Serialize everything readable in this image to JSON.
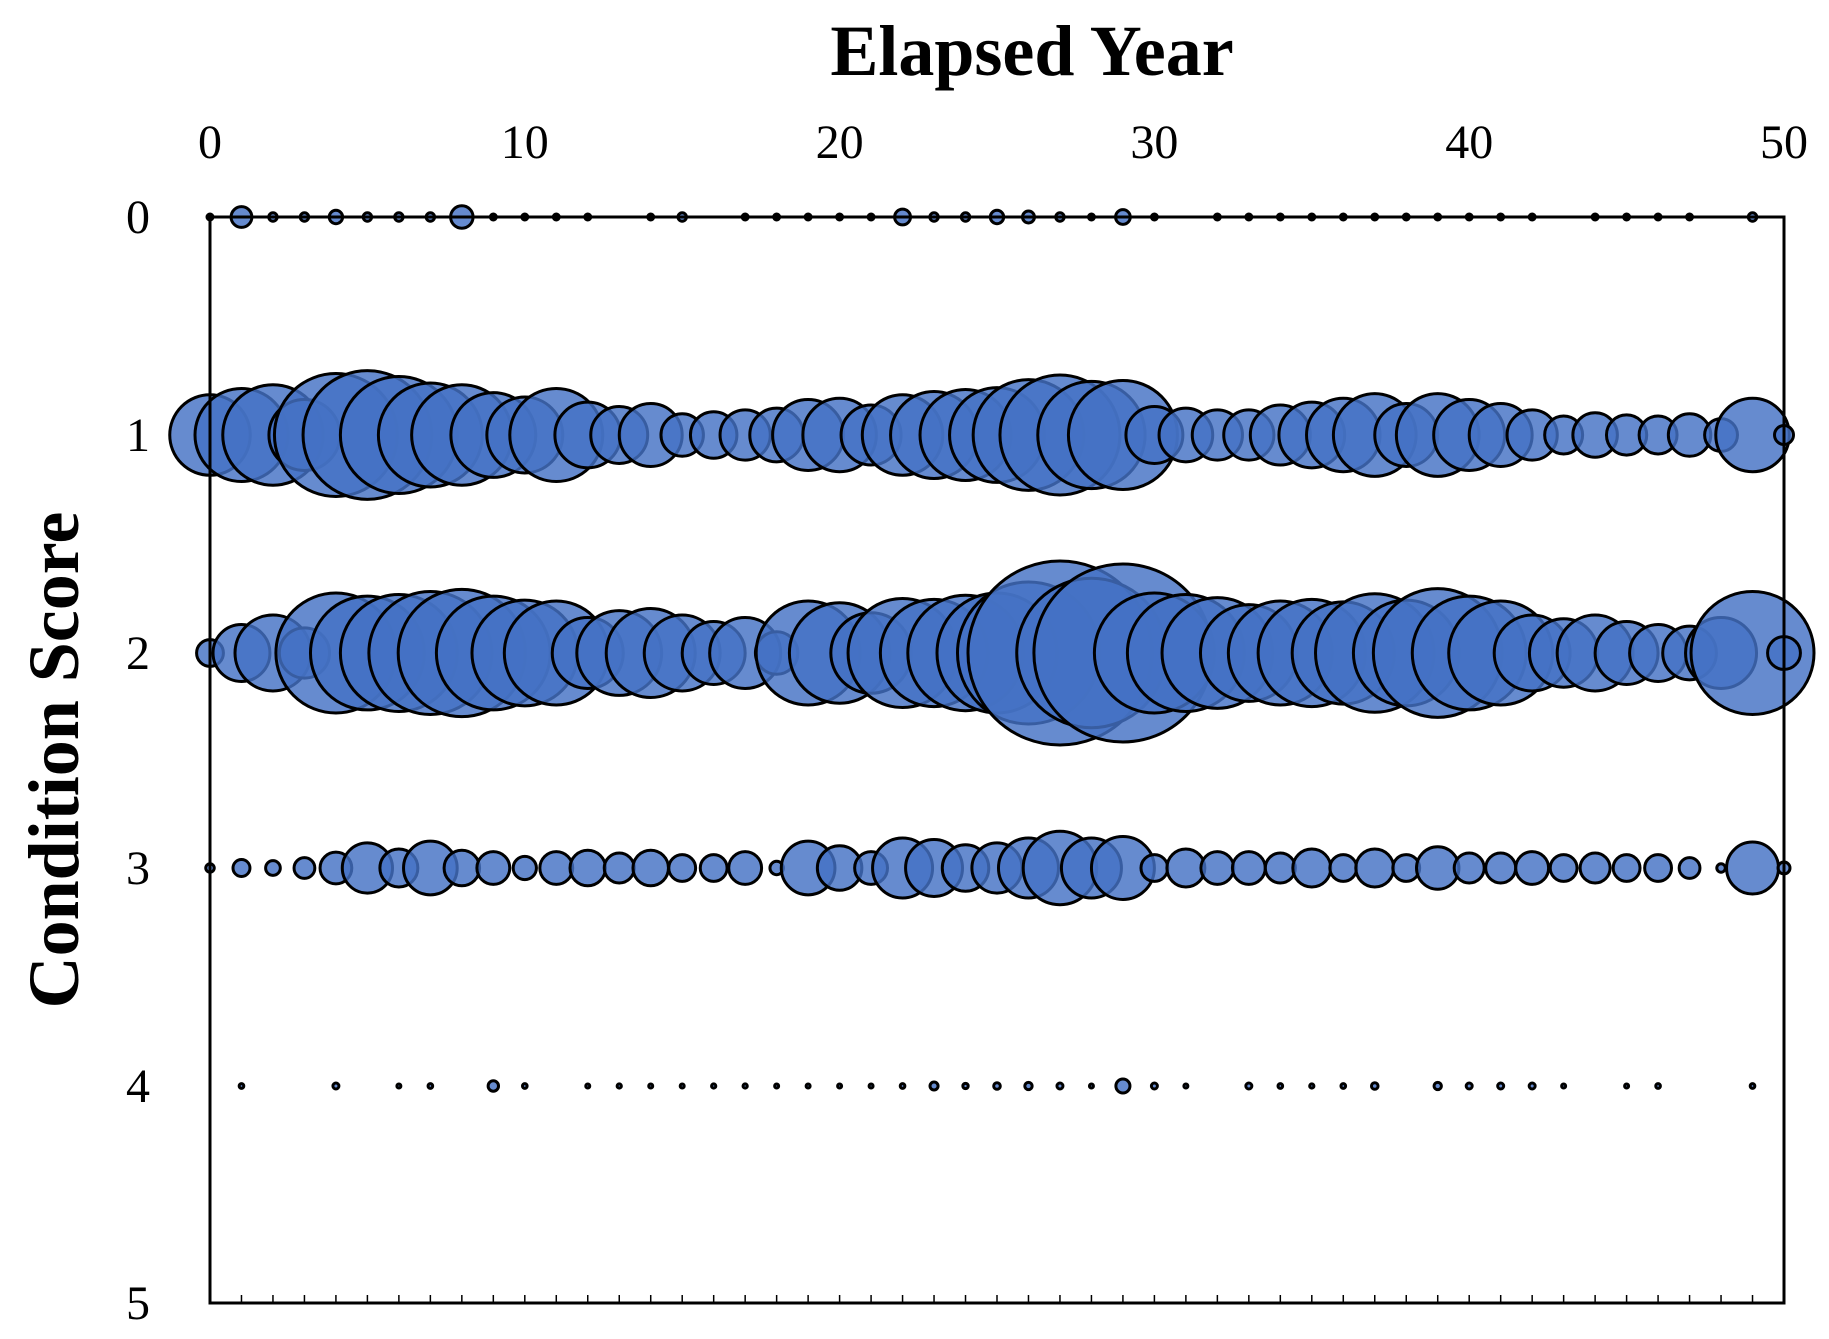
{
  "chart_data": {
    "type": "scatter",
    "title": "",
    "xlabel": "Elapsed Year",
    "ylabel": "Condition Score",
    "xlim": [
      0,
      50
    ],
    "ylim": [
      0,
      5
    ],
    "y_reversed": true,
    "x_axis_position": "top",
    "x_ticks": [
      0,
      10,
      20,
      30,
      40,
      50
    ],
    "y_ticks": [
      0,
      1,
      2,
      3,
      4,
      5
    ],
    "grid": false,
    "legend": "none",
    "marker_color": "#4472C4",
    "marker_edge_color": "#000000",
    "size_encoding": "bubble radius proportional to sqrt(count)",
    "bubbles": {
      "score_0": [
        [
          0,
          1
        ],
        [
          1,
          12
        ],
        [
          2,
          2
        ],
        [
          3,
          2
        ],
        [
          4,
          5
        ],
        [
          5,
          2
        ],
        [
          6,
          2
        ],
        [
          7,
          2
        ],
        [
          8,
          14
        ],
        [
          9,
          1
        ],
        [
          10,
          1
        ],
        [
          11,
          1
        ],
        [
          12,
          1
        ],
        [
          14,
          1
        ],
        [
          15,
          2
        ],
        [
          17,
          1
        ],
        [
          18,
          1
        ],
        [
          19,
          1
        ],
        [
          20,
          1
        ],
        [
          21,
          1
        ],
        [
          22,
          7
        ],
        [
          23,
          2
        ],
        [
          24,
          2
        ],
        [
          25,
          5
        ],
        [
          26,
          4
        ],
        [
          27,
          2
        ],
        [
          28,
          1
        ],
        [
          29,
          6
        ],
        [
          30,
          1
        ],
        [
          32,
          1
        ],
        [
          33,
          1
        ],
        [
          34,
          1
        ],
        [
          35,
          1
        ],
        [
          36,
          1
        ],
        [
          37,
          1
        ],
        [
          38,
          1
        ],
        [
          39,
          1
        ],
        [
          40,
          1
        ],
        [
          41,
          1
        ],
        [
          42,
          1
        ],
        [
          44,
          1
        ],
        [
          45,
          1
        ],
        [
          46,
          1
        ],
        [
          47,
          1
        ],
        [
          49,
          2
        ]
      ],
      "score_1": [
        [
          0,
          180
        ],
        [
          1,
          240
        ],
        [
          2,
          280
        ],
        [
          3,
          140
        ],
        [
          4,
          420
        ],
        [
          5,
          460
        ],
        [
          6,
          380
        ],
        [
          7,
          300
        ],
        [
          8,
          280
        ],
        [
          9,
          200
        ],
        [
          10,
          160
        ],
        [
          11,
          240
        ],
        [
          12,
          120
        ],
        [
          13,
          90
        ],
        [
          14,
          110
        ],
        [
          15,
          50
        ],
        [
          16,
          60
        ],
        [
          17,
          70
        ],
        [
          18,
          80
        ],
        [
          19,
          140
        ],
        [
          20,
          150
        ],
        [
          21,
          100
        ],
        [
          22,
          180
        ],
        [
          23,
          210
        ],
        [
          24,
          230
        ],
        [
          25,
          250
        ],
        [
          26,
          340
        ],
        [
          27,
          400
        ],
        [
          28,
          320
        ],
        [
          29,
          330
        ],
        [
          30,
          90
        ],
        [
          31,
          80
        ],
        [
          32,
          70
        ],
        [
          33,
          70
        ],
        [
          34,
          100
        ],
        [
          35,
          120
        ],
        [
          36,
          150
        ],
        [
          37,
          190
        ],
        [
          38,
          110
        ],
        [
          39,
          190
        ],
        [
          40,
          140
        ],
        [
          41,
          110
        ],
        [
          42,
          70
        ],
        [
          43,
          40
        ],
        [
          44,
          55
        ],
        [
          45,
          45
        ],
        [
          46,
          40
        ],
        [
          47,
          50
        ],
        [
          48,
          30
        ],
        [
          49,
          150
        ],
        [
          50,
          10
        ]
      ],
      "score_2": [
        [
          0,
          20
        ],
        [
          1,
          90
        ],
        [
          2,
          160
        ],
        [
          3,
          70
        ],
        [
          4,
          400
        ],
        [
          5,
          360
        ],
        [
          6,
          380
        ],
        [
          7,
          420
        ],
        [
          8,
          450
        ],
        [
          9,
          360
        ],
        [
          10,
          310
        ],
        [
          11,
          300
        ],
        [
          12,
          140
        ],
        [
          13,
          200
        ],
        [
          14,
          220
        ],
        [
          15,
          160
        ],
        [
          16,
          110
        ],
        [
          17,
          140
        ],
        [
          18,
          50
        ],
        [
          19,
          300
        ],
        [
          20,
          280
        ],
        [
          21,
          180
        ],
        [
          22,
          330
        ],
        [
          23,
          320
        ],
        [
          24,
          370
        ],
        [
          25,
          400
        ],
        [
          26,
          560
        ],
        [
          27,
          940
        ],
        [
          28,
          620
        ],
        [
          29,
          880
        ],
        [
          30,
          400
        ],
        [
          31,
          380
        ],
        [
          32,
          340
        ],
        [
          33,
          260
        ],
        [
          34,
          300
        ],
        [
          35,
          320
        ],
        [
          36,
          290
        ],
        [
          37,
          390
        ],
        [
          38,
          310
        ],
        [
          39,
          460
        ],
        [
          40,
          360
        ],
        [
          41,
          300
        ],
        [
          42,
          160
        ],
        [
          43,
          130
        ],
        [
          44,
          160
        ],
        [
          45,
          110
        ],
        [
          46,
          90
        ],
        [
          47,
          80
        ],
        [
          48,
          140
        ],
        [
          49,
          420
        ],
        [
          50,
          30
        ]
      ],
      "score_3": [
        [
          0,
          2
        ],
        [
          1,
          8
        ],
        [
          2,
          6
        ],
        [
          3,
          12
        ],
        [
          4,
          28
        ],
        [
          5,
          70
        ],
        [
          6,
          40
        ],
        [
          7,
          80
        ],
        [
          8,
          35
        ],
        [
          9,
          30
        ],
        [
          10,
          15
        ],
        [
          11,
          30
        ],
        [
          12,
          35
        ],
        [
          13,
          25
        ],
        [
          14,
          35
        ],
        [
          15,
          20
        ],
        [
          16,
          20
        ],
        [
          17,
          30
        ],
        [
          18,
          5
        ],
        [
          19,
          80
        ],
        [
          20,
          55
        ],
        [
          21,
          30
        ],
        [
          22,
          100
        ],
        [
          23,
          90
        ],
        [
          24,
          60
        ],
        [
          25,
          70
        ],
        [
          26,
          100
        ],
        [
          27,
          150
        ],
        [
          28,
          100
        ],
        [
          29,
          110
        ],
        [
          30,
          20
        ],
        [
          31,
          40
        ],
        [
          32,
          30
        ],
        [
          33,
          30
        ],
        [
          34,
          25
        ],
        [
          35,
          40
        ],
        [
          36,
          20
        ],
        [
          37,
          40
        ],
        [
          38,
          20
        ],
        [
          39,
          50
        ],
        [
          40,
          25
        ],
        [
          41,
          25
        ],
        [
          42,
          30
        ],
        [
          43,
          20
        ],
        [
          44,
          25
        ],
        [
          45,
          20
        ],
        [
          46,
          20
        ],
        [
          47,
          12
        ],
        [
          48,
          2
        ],
        [
          49,
          75
        ],
        [
          50,
          4
        ]
      ],
      "score_4": [
        [
          1,
          0.6
        ],
        [
          4,
          1
        ],
        [
          6,
          0.4
        ],
        [
          7,
          0.6
        ],
        [
          9,
          3
        ],
        [
          10,
          0.6
        ],
        [
          12,
          0.4
        ],
        [
          13,
          0.5
        ],
        [
          14,
          0.4
        ],
        [
          15,
          0.4
        ],
        [
          16,
          0.5
        ],
        [
          17,
          0.5
        ],
        [
          18,
          0.4
        ],
        [
          19,
          0.3
        ],
        [
          20,
          0.3
        ],
        [
          21,
          0.3
        ],
        [
          22,
          0.6
        ],
        [
          23,
          1.8
        ],
        [
          24,
          0.8
        ],
        [
          25,
          1.2
        ],
        [
          26,
          1.5
        ],
        [
          27,
          1
        ],
        [
          28,
          0.3
        ],
        [
          29,
          5.5
        ],
        [
          30,
          1
        ],
        [
          31,
          0.4
        ],
        [
          33,
          1
        ],
        [
          34,
          0.6
        ],
        [
          35,
          0.5
        ],
        [
          36,
          0.6
        ],
        [
          37,
          1.2
        ],
        [
          39,
          1.5
        ],
        [
          40,
          1
        ],
        [
          41,
          1
        ],
        [
          42,
          1
        ],
        [
          43,
          0.3
        ],
        [
          45,
          0.4
        ],
        [
          46,
          0.6
        ],
        [
          49,
          0.6
        ]
      ]
    }
  }
}
